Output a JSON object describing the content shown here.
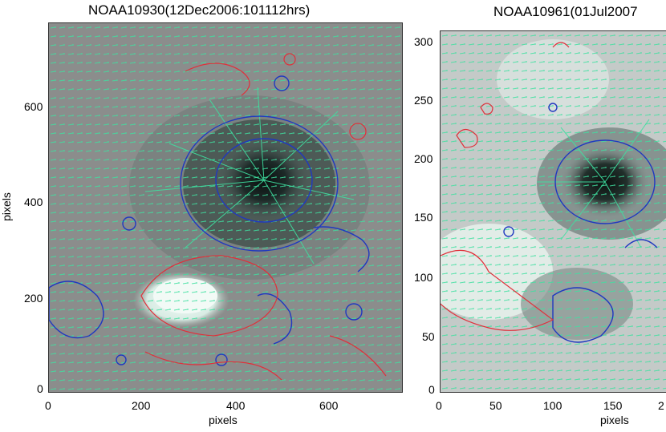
{
  "panels": [
    {
      "title": "NOAA10930(12Dec2006:101112hrs)",
      "xlabel": "pixels",
      "ylabel": "pixels",
      "xticks": [
        "0",
        "200",
        "400",
        "600"
      ],
      "yticks": [
        "0",
        "200",
        "400",
        "600"
      ]
    },
    {
      "title": "NOAA10961(01Jul2007",
      "xlabel": "pixels",
      "ylabel": "",
      "xticks": [
        "0",
        "50",
        "100",
        "150",
        "2"
      ],
      "yticks": [
        "0",
        "50",
        "100",
        "150",
        "200",
        "250",
        "300"
      ]
    }
  ],
  "colors": {
    "background_gray": "#8a8a8a",
    "vector_green": "#3fe0a0",
    "contour_red": "#e0303a",
    "contour_blue": "#2038c0",
    "umbra": "#101515"
  }
}
